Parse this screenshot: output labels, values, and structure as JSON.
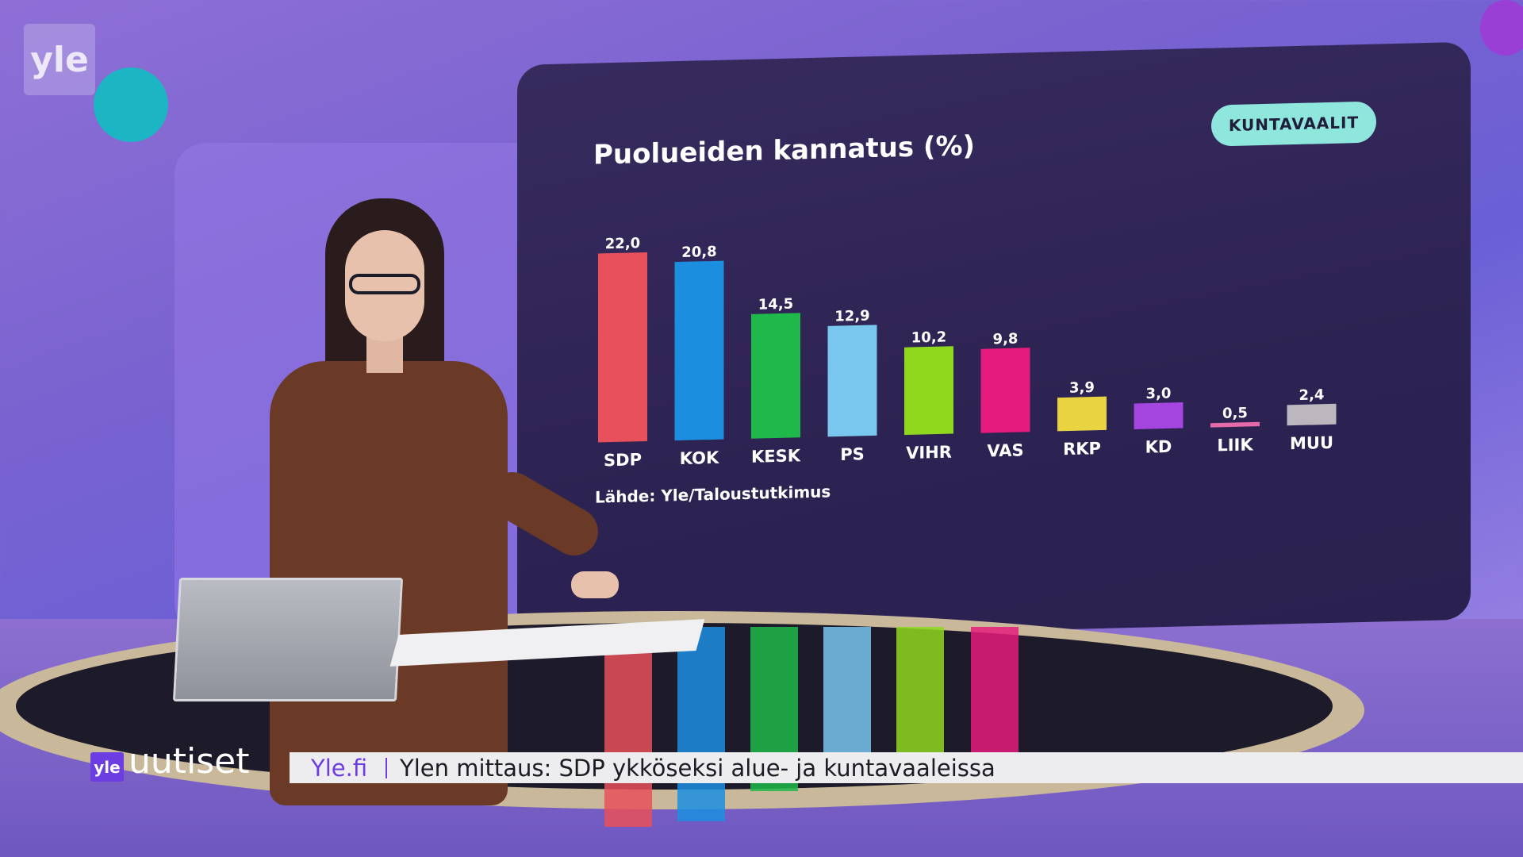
{
  "channel": {
    "logo": "yle"
  },
  "chart_data": {
    "type": "bar",
    "title": "Puolueiden kannatus (%)",
    "badge": "KUNTAVAALIT",
    "source": "Lähde: Yle/Taloustutkimus",
    "categories": [
      "SDP",
      "KOK",
      "KESK",
      "PS",
      "VIHR",
      "VAS",
      "RKP",
      "KD",
      "LIIK",
      "MUU"
    ],
    "values": [
      22.0,
      20.8,
      14.5,
      12.9,
      10.2,
      9.8,
      3.9,
      3.0,
      0.5,
      2.4
    ],
    "value_labels": [
      "22,0",
      "20,8",
      "14,5",
      "12,9",
      "10,2",
      "9,8",
      "3,9",
      "3,0",
      "0,5",
      "2,4"
    ],
    "colors": [
      "#e8505b",
      "#1c8ee0",
      "#1fb84a",
      "#79c6ee",
      "#8fd81e",
      "#e51c7d",
      "#e9d340",
      "#a445e0",
      "#e56aa8",
      "#bcb6bf"
    ],
    "ylim": [
      0,
      22
    ],
    "xlabel": "",
    "ylabel": "",
    "grid": false,
    "legend": "none"
  },
  "lower_third": {
    "brand_yle": "yle",
    "brand_name": "uutiset",
    "source": "Yle.fi",
    "headline": "Ylen mittaus: SDP ykköseksi alue- ja kuntavaaleissa"
  }
}
